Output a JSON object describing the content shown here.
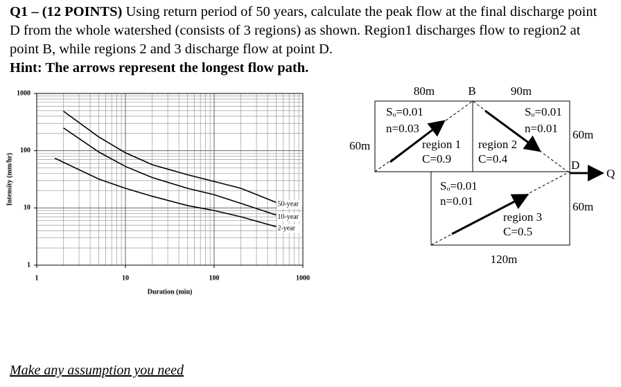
{
  "question": {
    "label": "Q1 – (12 POINTS)",
    "text": "Using return period of 50 years, calculate the peak flow at the final discharge point D from the whole watershed (consists of 3 regions) as shown. Region1 discharges flow to region2 at point B, while regions 2 and 3 discharge flow at point D.",
    "hint": "Hint: The arrows represent the longest flow path."
  },
  "chart_data": {
    "type": "line",
    "x_label": "Duration (min)",
    "y_label": "Intensity (mm/hr)",
    "log_x": true,
    "log_y": true,
    "grid": true,
    "xlim": [
      1,
      1000
    ],
    "ylim": [
      1,
      1000
    ],
    "xticks": [
      1,
      10,
      100,
      1000
    ],
    "yticks": [
      1,
      10,
      100,
      1000
    ],
    "series": [
      {
        "name": "50-year",
        "color": "#000000",
        "x": [
          2,
          5,
          10,
          20,
          50,
          100,
          200,
          500
        ],
        "values": [
          490,
          174,
          92,
          57,
          38,
          29,
          22,
          12.5
        ]
      },
      {
        "name": "10-year",
        "color": "#000000",
        "x": [
          2,
          5,
          10,
          20,
          50,
          100,
          200,
          500
        ],
        "values": [
          250,
          95,
          53,
          34,
          22,
          17,
          12,
          7.5
        ]
      },
      {
        "name": "2-year",
        "color": "#000000",
        "x": [
          1.6,
          5,
          10,
          20,
          50,
          100,
          200,
          500
        ],
        "values": [
          74,
          32,
          22,
          16,
          11,
          9,
          7,
          4.7
        ]
      }
    ]
  },
  "diagram": {
    "top_left_length": "80m",
    "point_b": "B",
    "top_right_length": "90m",
    "left_height": "60m",
    "right_height_upper": "60m",
    "right_height_lower": "60m",
    "bottom_length": "120m",
    "point_d": "D",
    "outflow": "Q",
    "region1": {
      "slope": "Sₒ=0.01",
      "n": "n=0.03",
      "name": "region 1",
      "c": "C=0.9"
    },
    "region2": {
      "slope": "Sₒ=0.01",
      "n": "n=0.01",
      "name": "region 2",
      "c": "C=0.4"
    },
    "region3": {
      "slope": "Sₒ=0.01",
      "n": "n=0.01",
      "name": "region 3",
      "c": "C=0.5"
    }
  },
  "footer": "Make any assumption you need"
}
